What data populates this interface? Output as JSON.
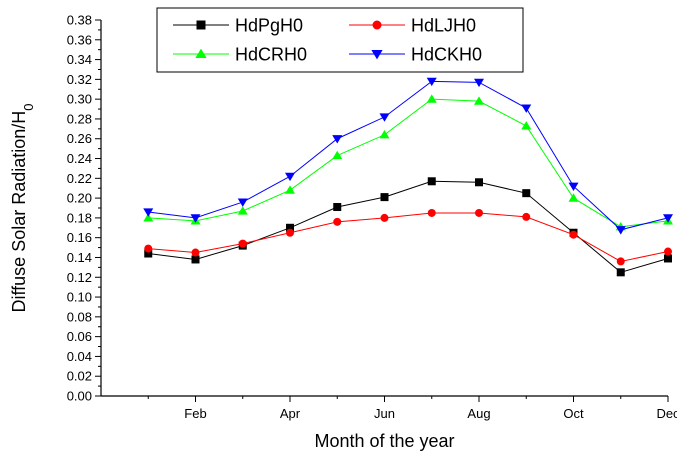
{
  "chart_data": {
    "type": "line",
    "title": "",
    "xlabel": "Month of the year",
    "ylabel_main": "Diffuse Solar Radiation/H",
    "ylabel_sub": "0",
    "x": [
      1,
      2,
      3,
      4,
      5,
      6,
      7,
      8,
      9,
      10,
      11,
      12
    ],
    "x_ticks": [
      {
        "value": 2,
        "label": "Feb"
      },
      {
        "value": 4,
        "label": "Apr"
      },
      {
        "value": 6,
        "label": "Jun"
      },
      {
        "value": 8,
        "label": "Aug"
      },
      {
        "value": 10,
        "label": "Oct"
      },
      {
        "value": 12,
        "label": "Dec"
      }
    ],
    "xlim": [
      0,
      12
    ],
    "ylim": [
      0,
      0.38
    ],
    "y_ticks": [
      "0.00",
      "0.02",
      "0.04",
      "0.06",
      "0.08",
      "0.10",
      "0.12",
      "0.14",
      "0.16",
      "0.18",
      "0.20",
      "0.22",
      "0.24",
      "0.26",
      "0.28",
      "0.30",
      "0.32",
      "0.34",
      "0.36",
      "0.38"
    ],
    "legend_position": "top",
    "series": [
      {
        "name": "HdPgH0",
        "color": "#000000",
        "marker": "square",
        "values": [
          0.144,
          0.138,
          0.152,
          0.17,
          0.191,
          0.201,
          0.217,
          0.216,
          0.205,
          0.165,
          0.125,
          0.139
        ]
      },
      {
        "name": "HdLJH0",
        "color": "#ff0000",
        "marker": "circle",
        "values": [
          0.149,
          0.145,
          0.154,
          0.165,
          0.176,
          0.18,
          0.185,
          0.185,
          0.181,
          0.163,
          0.136,
          0.146
        ]
      },
      {
        "name": "HdCRH0",
        "color": "#00ff00",
        "marker": "triangle-up",
        "values": [
          0.18,
          0.177,
          0.187,
          0.208,
          0.243,
          0.264,
          0.3,
          0.298,
          0.273,
          0.2,
          0.171,
          0.177
        ]
      },
      {
        "name": "HdCKH0",
        "color": "#0000ff",
        "marker": "triangle-down",
        "values": [
          0.186,
          0.18,
          0.196,
          0.222,
          0.26,
          0.282,
          0.318,
          0.317,
          0.291,
          0.212,
          0.168,
          0.18
        ]
      }
    ]
  }
}
